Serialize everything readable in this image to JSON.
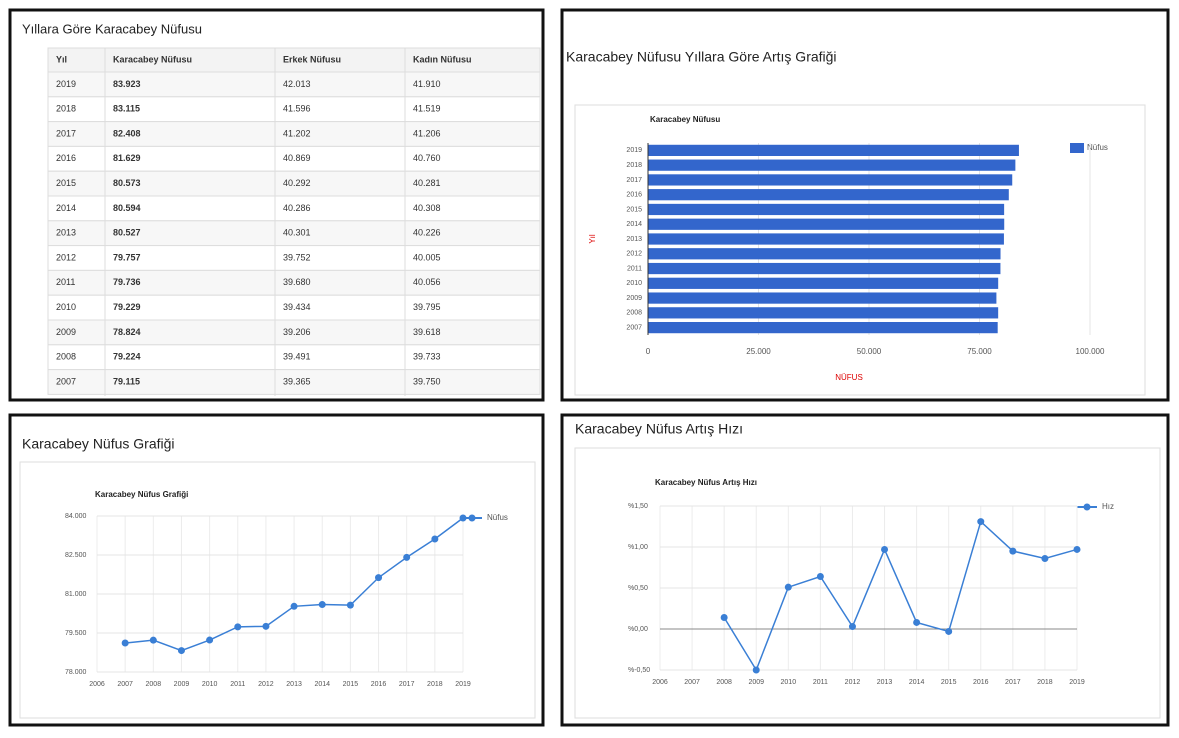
{
  "table": {
    "title": "Yıllara Göre Karacabey Nüfusu",
    "columns": [
      "Yıl",
      "Karacabey Nüfusu",
      "Erkek Nüfusu",
      "Kadın Nüfusu"
    ],
    "rows": [
      [
        "2019",
        "83.923",
        "42.013",
        "41.910"
      ],
      [
        "2018",
        "83.115",
        "41.596",
        "41.519"
      ],
      [
        "2017",
        "82.408",
        "41.202",
        "41.206"
      ],
      [
        "2016",
        "81.629",
        "40.869",
        "40.760"
      ],
      [
        "2015",
        "80.573",
        "40.292",
        "40.281"
      ],
      [
        "2014",
        "80.594",
        "40.286",
        "40.308"
      ],
      [
        "2013",
        "80.527",
        "40.301",
        "40.226"
      ],
      [
        "2012",
        "79.757",
        "39.752",
        "40.005"
      ],
      [
        "2011",
        "79.736",
        "39.680",
        "40.056"
      ],
      [
        "2010",
        "79.229",
        "39.434",
        "39.795"
      ],
      [
        "2009",
        "78.824",
        "39.206",
        "39.618"
      ],
      [
        "2008",
        "79.224",
        "39.491",
        "39.733"
      ],
      [
        "2007",
        "79.115",
        "39.365",
        "39.750"
      ]
    ]
  },
  "chart_data": [
    {
      "type": "hbar",
      "title": "Karacabey Nüfusu Yıllara Göre Artış Grafiği",
      "chart_title": "Karacabey Nüfusu",
      "y_label": "Yıl",
      "x_label": "NÜFUS",
      "categories": [
        "2019",
        "2018",
        "2017",
        "2016",
        "2015",
        "2014",
        "2013",
        "2012",
        "2011",
        "2010",
        "2009",
        "2008",
        "2007"
      ],
      "series": [
        {
          "name": "Nüfus",
          "color": "#3366cc",
          "values": [
            83923,
            83115,
            82408,
            81629,
            80573,
            80594,
            80527,
            79757,
            79736,
            79229,
            78824,
            79224,
            79115
          ]
        }
      ],
      "xlim": [
        0,
        100000
      ],
      "xticks": [
        0,
        {
          "value": 25000,
          "label": "25.000"
        },
        {
          "value": 50000,
          "label": "50.000"
        },
        {
          "value": 75000,
          "label": "75.000"
        },
        {
          "value": 100000,
          "label": "100.000"
        }
      ],
      "grid": true,
      "legend": "right"
    },
    {
      "type": "line",
      "title": "Karacabey Nüfus Grafiği",
      "chart_title": "Karacabey Nüfus Grafiği",
      "x": [
        2007,
        2008,
        2009,
        2010,
        2011,
        2012,
        2013,
        2014,
        2015,
        2016,
        2017,
        2018,
        2019
      ],
      "series": [
        {
          "name": "Nüfus",
          "color": "#3a7fd5",
          "values": [
            79115,
            79224,
            78824,
            79229,
            79736,
            79757,
            80527,
            80594,
            80573,
            81629,
            82408,
            83115,
            83923
          ]
        }
      ],
      "xlim": [
        2006,
        2019
      ],
      "xticks": [
        2006,
        2007,
        2008,
        2009,
        2010,
        2011,
        2012,
        2013,
        2014,
        2015,
        2016,
        2017,
        2018,
        2019
      ],
      "ylim": [
        78000,
        84000
      ],
      "yticks": [
        {
          "value": 78000,
          "label": "78.000"
        },
        {
          "value": 79500,
          "label": "79.500"
        },
        {
          "value": 81000,
          "label": "81.000"
        },
        {
          "value": 82500,
          "label": "82.500"
        },
        {
          "value": 84000,
          "label": "84.000"
        }
      ],
      "grid": true,
      "legend": "right"
    },
    {
      "type": "line",
      "title": "Karacabey Nüfus Artış Hızı",
      "chart_title": "Karacabey Nüfus Artış Hızı",
      "x": [
        2008,
        2009,
        2010,
        2011,
        2012,
        2013,
        2014,
        2015,
        2016,
        2017,
        2018,
        2019
      ],
      "series": [
        {
          "name": "Hız",
          "color": "#3a7fd5",
          "values": [
            0.14,
            -0.5,
            0.51,
            0.64,
            0.03,
            0.97,
            0.08,
            -0.03,
            1.31,
            0.95,
            0.86,
            0.97
          ]
        }
      ],
      "xlim": [
        2006,
        2019
      ],
      "xticks": [
        2006,
        2007,
        2008,
        2009,
        2010,
        2011,
        2012,
        2013,
        2014,
        2015,
        2016,
        2017,
        2018,
        2019
      ],
      "ylim": [
        -0.5,
        1.5
      ],
      "yticks": [
        {
          "value": -0.5,
          "label": "%-0,50"
        },
        {
          "value": 0,
          "label": "%0,00"
        },
        {
          "value": 0.5,
          "label": "%0,50"
        },
        {
          "value": 1,
          "label": "%1,00"
        },
        {
          "value": 1.5,
          "label": "%1,50"
        }
      ],
      "grid": true,
      "legend": "right"
    }
  ]
}
